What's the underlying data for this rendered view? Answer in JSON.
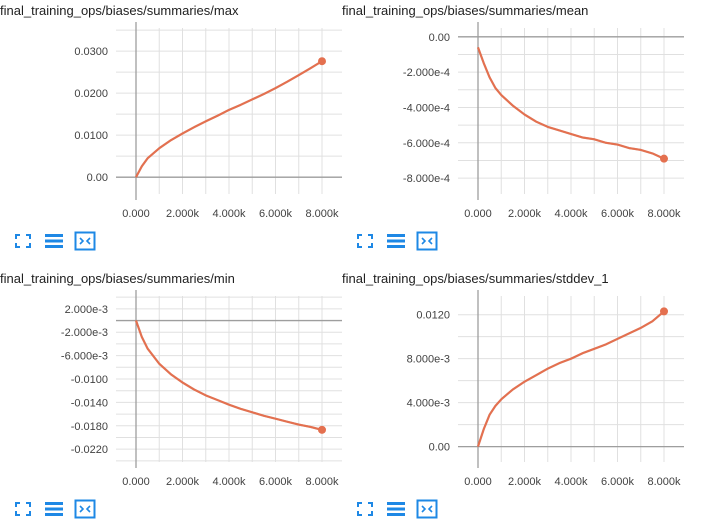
{
  "colors": {
    "line": "#e4704f",
    "line_dark": "#b65a3e",
    "grid": "#e0e0e0",
    "axis": "#9e9e9e",
    "icon": "#1e88e5"
  },
  "toolbar_icons": [
    "expand-icon",
    "list-icon",
    "fit-domain-icon"
  ],
  "chart_data": [
    {
      "type": "line",
      "title": "final_training_ops/biases/summaries/max",
      "xlim": [
        0,
        8000
      ],
      "ylim": [
        -0.004,
        0.0355
      ],
      "x_ticks": [
        0,
        2000,
        4000,
        6000,
        8000
      ],
      "x_tick_labels": [
        "0.000",
        "2.000k",
        "4.000k",
        "6.000k",
        "8.000k"
      ],
      "y_ticks": [
        0,
        0.01,
        0.02,
        0.03
      ],
      "y_tick_labels": [
        "0.00",
        "0.0100",
        "0.0200",
        "0.0300"
      ],
      "grid": true,
      "series": [
        {
          "x": [
            0,
            250,
            500,
            1000,
            1500,
            2000,
            2500,
            3000,
            3500,
            4000,
            4500,
            5000,
            5500,
            6000,
            6500,
            7000,
            7500,
            8000
          ],
          "y": [
            0,
            0.0026,
            0.0045,
            0.0069,
            0.0088,
            0.0104,
            0.0119,
            0.0133,
            0.0146,
            0.016,
            0.0172,
            0.0185,
            0.0198,
            0.0212,
            0.0227,
            0.0243,
            0.0259,
            0.0276
          ]
        }
      ]
    },
    {
      "type": "line",
      "title": "final_training_ops/biases/summaries/mean",
      "xlim": [
        0,
        8000
      ],
      "ylim": [
        -0.00089,
        5e-05
      ],
      "x_ticks": [
        0,
        2000,
        4000,
        6000,
        8000
      ],
      "x_tick_labels": [
        "0.000",
        "2.000k",
        "4.000k",
        "6.000k",
        "8.000k"
      ],
      "y_ticks": [
        0,
        -0.0002,
        -0.0004,
        -0.0006,
        -0.0008
      ],
      "y_tick_labels": [
        "0.00",
        "-2.000e-4",
        "-4.000e-4",
        "-6.000e-4",
        "-8.000e-4"
      ],
      "grid": true,
      "series": [
        {
          "x": [
            0,
            250,
            500,
            750,
            1000,
            1500,
            2000,
            2500,
            3000,
            3500,
            4000,
            4500,
            5000,
            5500,
            6000,
            6500,
            7000,
            7500,
            8000
          ],
          "y": [
            -6e-05,
            -0.00015,
            -0.00023,
            -0.00029,
            -0.00033,
            -0.00039,
            -0.00044,
            -0.00048,
            -0.00051,
            -0.00053,
            -0.00055,
            -0.00057,
            -0.00058,
            -0.0006,
            -0.00061,
            -0.00063,
            -0.00064,
            -0.00066,
            -0.00069
          ]
        }
      ]
    },
    {
      "type": "line",
      "title": "final_training_ops/biases/summaries/min",
      "xlim": [
        0,
        8000
      ],
      "ylim": [
        -0.0242,
        0.0042
      ],
      "x_ticks": [
        0,
        2000,
        4000,
        6000,
        8000
      ],
      "x_tick_labels": [
        "0.000",
        "2.000k",
        "4.000k",
        "6.000k",
        "8.000k"
      ],
      "y_ticks": [
        0.002,
        -0.002,
        -0.006,
        -0.01,
        -0.014,
        -0.018,
        -0.022
      ],
      "y_tick_labels": [
        "2.000e-3",
        "-2.000e-3",
        "-6.000e-3",
        "-0.0100",
        "-0.0140",
        "-0.0180",
        "-0.0220"
      ],
      "grid": true,
      "series": [
        {
          "x": [
            0,
            250,
            500,
            1000,
            1500,
            2000,
            2500,
            3000,
            3500,
            4000,
            4500,
            5000,
            5500,
            6000,
            6500,
            7000,
            7500,
            8000
          ],
          "y": [
            0,
            -0.0028,
            -0.0048,
            -0.0074,
            -0.0092,
            -0.0106,
            -0.0118,
            -0.0128,
            -0.0136,
            -0.0144,
            -0.0151,
            -0.0157,
            -0.0163,
            -0.0168,
            -0.0173,
            -0.0178,
            -0.0182,
            -0.0187
          ]
        }
      ]
    },
    {
      "type": "line",
      "title": "final_training_ops/biases/summaries/stddev_1",
      "xlim": [
        0,
        8000
      ],
      "ylim": [
        -0.0014,
        0.0137
      ],
      "x_ticks": [
        0,
        2000,
        4000,
        6000,
        8000
      ],
      "x_tick_labels": [
        "0.000",
        "2.000k",
        "4.000k",
        "6.000k",
        "8.000k"
      ],
      "y_ticks": [
        0,
        0.004,
        0.008,
        0.012
      ],
      "y_tick_labels": [
        "0.00",
        "4.000e-3",
        "8.000e-3",
        "0.0120"
      ],
      "grid": true,
      "series": [
        {
          "x": [
            0,
            250,
            500,
            750,
            1000,
            1500,
            2000,
            2500,
            3000,
            3500,
            4000,
            4500,
            5000,
            5500,
            6000,
            6500,
            7000,
            7500,
            8000
          ],
          "y": [
            0,
            0.0016,
            0.0029,
            0.0037,
            0.0043,
            0.0052,
            0.0059,
            0.0065,
            0.0071,
            0.0076,
            0.008,
            0.0085,
            0.0089,
            0.0093,
            0.0098,
            0.0103,
            0.0108,
            0.0114,
            0.0123
          ]
        }
      ]
    }
  ]
}
